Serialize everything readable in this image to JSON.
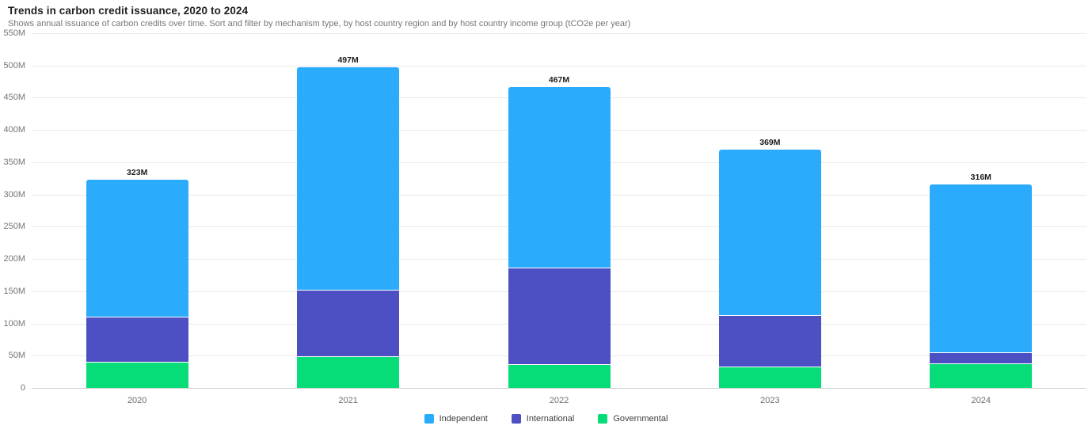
{
  "header": {
    "title": "Trends in carbon credit issuance, 2020 to 2024",
    "subtitle": "Shows annual issuance of carbon credits over time. Sort and filter by mechanism type, by host country region and by host country income group (tCO2e per year)"
  },
  "colors": {
    "independent": "#2BABFC",
    "international": "#4D50C2",
    "governmental": "#06DD78",
    "gridline": "#eaeaea",
    "axis_line": "#cfcfcf",
    "tick_text": "#757575"
  },
  "chart_data": {
    "type": "bar",
    "stacked": true,
    "title": "Trends in carbon credit issuance, 2020 to 2024",
    "subtitle": "Shows annual issuance of carbon credits over time. Sort and filter by mechanism type, by host country region and by host country income group (tCO2e per year)",
    "unit": "M tCO2e per year",
    "categories": [
      "2020",
      "2021",
      "2022",
      "2023",
      "2024"
    ],
    "series": [
      {
        "name": "Independent",
        "color_key": "independent",
        "values": [
          213,
          345,
          281,
          256,
          261
        ]
      },
      {
        "name": "International",
        "color_key": "international",
        "values": [
          70,
          103,
          149,
          80,
          17
        ]
      },
      {
        "name": "Governmental",
        "color_key": "governmental",
        "values": [
          40,
          49,
          37,
          33,
          38
        ]
      }
    ],
    "totals": [
      323,
      497,
      467,
      369,
      316
    ],
    "total_labels": [
      "323M",
      "497M",
      "467M",
      "369M",
      "316M"
    ],
    "ylim": [
      0,
      550
    ],
    "y_tick_step": 50,
    "y_ticks": [
      "0",
      "50M",
      "100M",
      "150M",
      "200M",
      "250M",
      "300M",
      "350M",
      "400M",
      "450M",
      "500M",
      "550M"
    ],
    "grid": true,
    "legend_position": "bottom-center",
    "legend": [
      "Independent",
      "International",
      "Governmental"
    ]
  }
}
